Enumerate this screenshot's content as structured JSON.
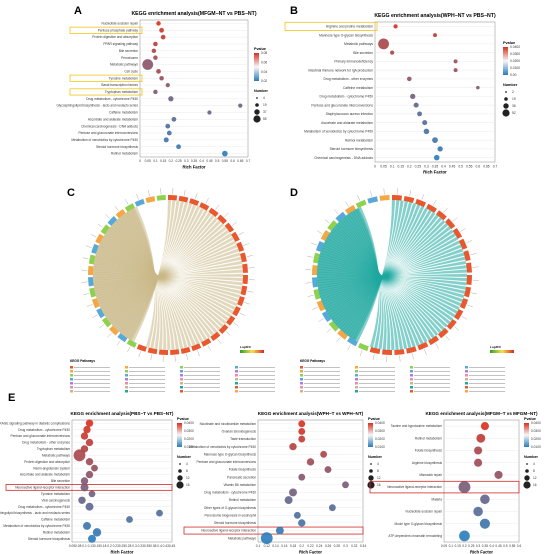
{
  "figure": {
    "panel_labels": [
      "A",
      "B",
      "C",
      "D",
      "E"
    ],
    "colors": {
      "low": "#d7301f",
      "high": "#2b7bba",
      "highlight_yellow": "#f0c419",
      "highlight_red": "#d62728",
      "chord_teal": "#1fa8a0",
      "chord_khaki": "#c9b887",
      "outer_red": "#e8572e",
      "outer_green": "#7fbf4a"
    }
  },
  "chart_data": [
    {
      "panel": "A",
      "type": "scatter",
      "title": "KEGG enrichment analysis(MFGM−NT vs PBS−NT)",
      "xlabel": "Rich Factor",
      "xlim": [
        0,
        0.7
      ],
      "x_ticks": [
        "0",
        "0.05",
        "0.1",
        "0.15",
        "0.2",
        "0.25",
        "0.3",
        "0.35",
        "0.4",
        "0.45",
        "0.5",
        "0.55",
        "0.6",
        "0.65",
        "0.7"
      ],
      "legend_color_title": "Pvalue",
      "legend_color_values": [
        "0.08",
        "0.06",
        "0.04",
        "0.02"
      ],
      "legend_size_title": "Number",
      "legend_size_values": [
        "4",
        "19",
        "37",
        "55"
      ],
      "categories": [
        "Nucleotide excision repair",
        "Pentose phosphate pathway",
        "Protein digestion and absorption",
        "PPAR signaling pathway",
        "Bile secretion",
        "Peroxisome",
        "Metabolic pathways",
        "Cell cycle",
        "Tyrosine metabolism",
        "Basal transcription factors",
        "Tryptophan metabolism",
        "Drug metabolism - cytochrome P450",
        "Glycosphingolipid biosynthesis - lacto and neolacto series",
        "Caffeine metabolism",
        "Ascorbate and aldarate metabolism",
        "Chemical carcinogenesis - DNA adducts",
        "Pentose and glucuronate interconversions",
        "Metabolism of xenobiotics by cytochrome P450",
        "Steroid hormone biosynthesis",
        "Retinol metabolism"
      ],
      "x": [
        0.12,
        0.14,
        0.15,
        0.1,
        0.09,
        0.1,
        0.05,
        0.12,
        0.14,
        0.18,
        0.1,
        0.2,
        0.65,
        0.45,
        0.22,
        0.18,
        0.19,
        0.17,
        0.25,
        0.55
      ],
      "pvalue": [
        0.07,
        0.065,
        0.06,
        0.06,
        0.055,
        0.05,
        0.04,
        0.05,
        0.045,
        0.04,
        0.035,
        0.03,
        0.03,
        0.025,
        0.02,
        0.018,
        0.015,
        0.012,
        0.01,
        0.005
      ],
      "count": [
        5,
        6,
        6,
        5,
        5,
        5,
        55,
        6,
        5,
        4,
        5,
        8,
        4,
        4,
        6,
        6,
        6,
        7,
        6,
        10
      ],
      "highlighted": [
        "Pentose phosphate pathway",
        "Tyrosine metabolism",
        "Tryptophan metabolism"
      ]
    },
    {
      "panel": "B",
      "type": "scatter",
      "title": "KEGG enrichment analysis(WPH−NT vs PBS−NT)",
      "xlabel": "Rich Factor",
      "xlim": [
        0,
        0.7
      ],
      "x_ticks": [
        "0",
        "0.05",
        "0.1",
        "0.15",
        "0.2",
        "0.25",
        "0.3",
        "0.35",
        "0.4",
        "0.45",
        "0.5",
        "0.55",
        "0.6",
        "0.65",
        "0.7"
      ],
      "legend_color_title": "Pvalue",
      "legend_color_values": [
        "0.0400",
        "0.0300",
        "0.0200",
        "0.0100",
        "0.00"
      ],
      "legend_size_title": "Number",
      "legend_size_values": [
        "2",
        "19",
        "36",
        "52"
      ],
      "categories": [
        "Arginine and proline metabolism",
        "Mannose type O-glycan biosynthesis",
        "Metabolic pathways",
        "Bile secretion",
        "Primary immunodeficiency",
        "Intestinal immune network for IgA production",
        "Drug metabolism - other enzymes",
        "Caffeine metabolism",
        "Drug metabolism - cytochrome P450",
        "Pentose and glucuronate interconversions",
        "Staphylococcus aureus infection",
        "Ascorbate and aldarate metabolism",
        "Metabolism of xenobiotics by cytochrome P450",
        "Retinol metabolism",
        "Steroid hormone biosynthesis",
        "Chemical carcinogenesis - DNA adducts"
      ],
      "x": [
        0.12,
        0.35,
        0.05,
        0.1,
        0.47,
        0.47,
        0.2,
        0.6,
        0.22,
        0.24,
        0.26,
        0.29,
        0.3,
        0.35,
        0.38,
        0.36
      ],
      "pvalue": [
        0.04,
        0.035,
        0.03,
        0.03,
        0.028,
        0.026,
        0.024,
        0.02,
        0.018,
        0.015,
        0.013,
        0.012,
        0.01,
        0.008,
        0.006,
        0.004
      ],
      "count": [
        4,
        3,
        52,
        4,
        3,
        3,
        5,
        2,
        8,
        7,
        6,
        7,
        9,
        10,
        8,
        9
      ],
      "highlighted": [
        "Arginine and proline metabolism"
      ]
    },
    {
      "panel": "E1",
      "type": "scatter",
      "title": "KEGG enrichment analysis(PBS−T vs PBS−NT)",
      "xlabel": "Rich Factor",
      "xlim": [
        0.05,
        0.45
      ],
      "x_ticks": [
        "0.05",
        "0.08",
        "0.1",
        "0.13",
        "0.15",
        "0.18",
        "0.2",
        "0.23",
        "0.25",
        "0.28",
        "0.3",
        "0.33",
        "0.35",
        "0.38",
        "0.4",
        "0.43",
        "0.45"
      ],
      "legend_color_title": "Pvalue",
      "legend_color_values": [
        "0.0400",
        "0.0300",
        "0.0200",
        "0.0100"
      ],
      "legend_size_title": "Number",
      "legend_size_values": [
        "4",
        "8",
        "12",
        "16"
      ],
      "categories": [
        "AGE-RAGE signaling pathway in diabetic complications",
        "Drug metabolism - cytochrome P450",
        "Pentose and glucuronate interconversions",
        "Drug metabolism - other enzymes",
        "Tryptophan metabolism",
        "Metabolic pathways",
        "Protein digestion and absorption",
        "Renin-angiotensin system",
        "Ascorbate and aldarate metabolism",
        "Bile secretion",
        "Neuroactive ligand-receptor interaction",
        "Tyrosine metabolism",
        "Viral carcinogenesis",
        "Drug metabolism - cytochrome P450",
        "Glycosphingolipid biosynthesis - lacto and neolacto series",
        "Caffeine metabolism",
        "Metabolism of xenobiotics by cytochrome P450",
        "Retinol metabolism",
        "Steroid hormone biosynthesis"
      ],
      "x": [
        0.12,
        0.11,
        0.1,
        0.12,
        0.1,
        0.08,
        0.12,
        0.14,
        0.12,
        0.1,
        0.1,
        0.13,
        0.09,
        0.12,
        0.4,
        0.28,
        0.11,
        0.15,
        0.13
      ],
      "pvalue": [
        0.04,
        0.038,
        0.036,
        0.034,
        0.032,
        0.03,
        0.028,
        0.026,
        0.024,
        0.022,
        0.02,
        0.018,
        0.016,
        0.014,
        0.012,
        0.01,
        0.008,
        0.006,
        0.004
      ],
      "count": [
        5,
        5,
        5,
        5,
        5,
        16,
        5,
        4,
        5,
        5,
        6,
        4,
        5,
        6,
        4,
        4,
        6,
        7,
        6
      ],
      "highlighted": [
        "Neuroactive ligand-receptor interaction"
      ]
    },
    {
      "panel": "E2",
      "type": "scatter",
      "title": "KEGG enrichment analysis(WPH−T vs WPH−NT)",
      "xlabel": "Rich Factor",
      "xlim": [
        0.1,
        0.34
      ],
      "x_ticks": [
        "0.1",
        "0.12",
        "0.14",
        "0.16",
        "0.18",
        "0.2",
        "0.22",
        "0.24",
        "0.26",
        "0.28",
        "0.3",
        "0.32",
        "0.34"
      ],
      "legend_color_title": "Pvalue",
      "legend_color_values": [
        "0.0400",
        "0.0300",
        "0.0200",
        "0.0100"
      ],
      "legend_size_title": "Number",
      "legend_size_values": [
        "4",
        "8",
        "12",
        "16"
      ],
      "categories": [
        "Nicotinate and nicotinamide metabolism",
        "Ovarian steroidogenesis",
        "Taste transduction",
        "Metabolism of xenobiotics by cytochrome P450",
        "Mannose type O-glycan biosynthesis",
        "Pentose and glucuronate interconversions",
        "Folate biosynthesis",
        "Pancreatic secretion",
        "Vitamin B6 metabolism",
        "Drug metabolism - cytochrome P450",
        "Retinol metabolism",
        "Other types of O-glycan biosynthesis",
        "Peroxisome biogenesis in eosinophil",
        "Steroid hormone biosynthesis",
        "Neuroactive ligand-receptor interaction",
        "Metabolic pathways"
      ],
      "x": [
        0.2,
        0.2,
        0.2,
        0.18,
        0.25,
        0.22,
        0.26,
        0.2,
        0.3,
        0.18,
        0.17,
        0.27,
        0.19,
        0.2,
        0.15,
        0.12
      ],
      "pvalue": [
        0.04,
        0.038,
        0.035,
        0.032,
        0.03,
        0.027,
        0.025,
        0.022,
        0.02,
        0.018,
        0.015,
        0.012,
        0.01,
        0.008,
        0.005,
        0.003
      ],
      "count": [
        4,
        4,
        4,
        5,
        4,
        5,
        4,
        4,
        4,
        6,
        6,
        4,
        4,
        5,
        6,
        16
      ],
      "highlighted": [
        "Neuroactive ligand-receptor interaction"
      ]
    },
    {
      "panel": "E3",
      "type": "scatter",
      "title": "KEGG enrichment analysis(MFGM−T vs MFGM−NT)",
      "xlabel": "Rich Factor",
      "xlim": [
        0.05,
        0.6
      ],
      "x_ticks": [
        "0.05",
        "0.1",
        "0.15",
        "0.2",
        "0.25",
        "0.3",
        "0.35",
        "0.4",
        "0.45",
        "0.5",
        "0.55",
        "0.6"
      ],
      "legend_color_title": "Pvalue",
      "legend_color_values": [
        "0.0400",
        "0.0300",
        "0.0200",
        "0.0100"
      ],
      "legend_size_title": "Number",
      "legend_size_values": [
        "4",
        "8",
        "12",
        "16"
      ],
      "categories": [
        "Taurine and hypotaurine metabolism",
        "Retinol metabolism",
        "Folate biosynthesis",
        "Arginine biosynthesis",
        "Mismatch repair",
        "Neuroactive ligand-receptor interaction",
        "Malaria",
        "Nucleotide excision repair",
        "Mucin type O-glycan biosynthesis",
        "ATP-dependent chromatin remodeling"
      ],
      "x": [
        0.35,
        0.32,
        0.3,
        0.3,
        0.45,
        0.2,
        0.35,
        0.3,
        0.35,
        0.2
      ],
      "pvalue": [
        0.04,
        0.035,
        0.03,
        0.028,
        0.025,
        0.02,
        0.015,
        0.012,
        0.008,
        0.004
      ],
      "count": [
        4,
        5,
        4,
        4,
        4,
        10,
        6,
        6,
        7,
        8
      ],
      "highlighted": [
        "Neuroactive ligand-receptor interaction"
      ]
    },
    {
      "panel": "C",
      "type": "chord",
      "segments": 44,
      "legend_title": "KEGG Pathways",
      "scale_title": "Log2FC"
    },
    {
      "panel": "D",
      "type": "chord",
      "segments": 40,
      "legend_title": "KEGG Pathways",
      "scale_title": "Log2FC"
    }
  ]
}
